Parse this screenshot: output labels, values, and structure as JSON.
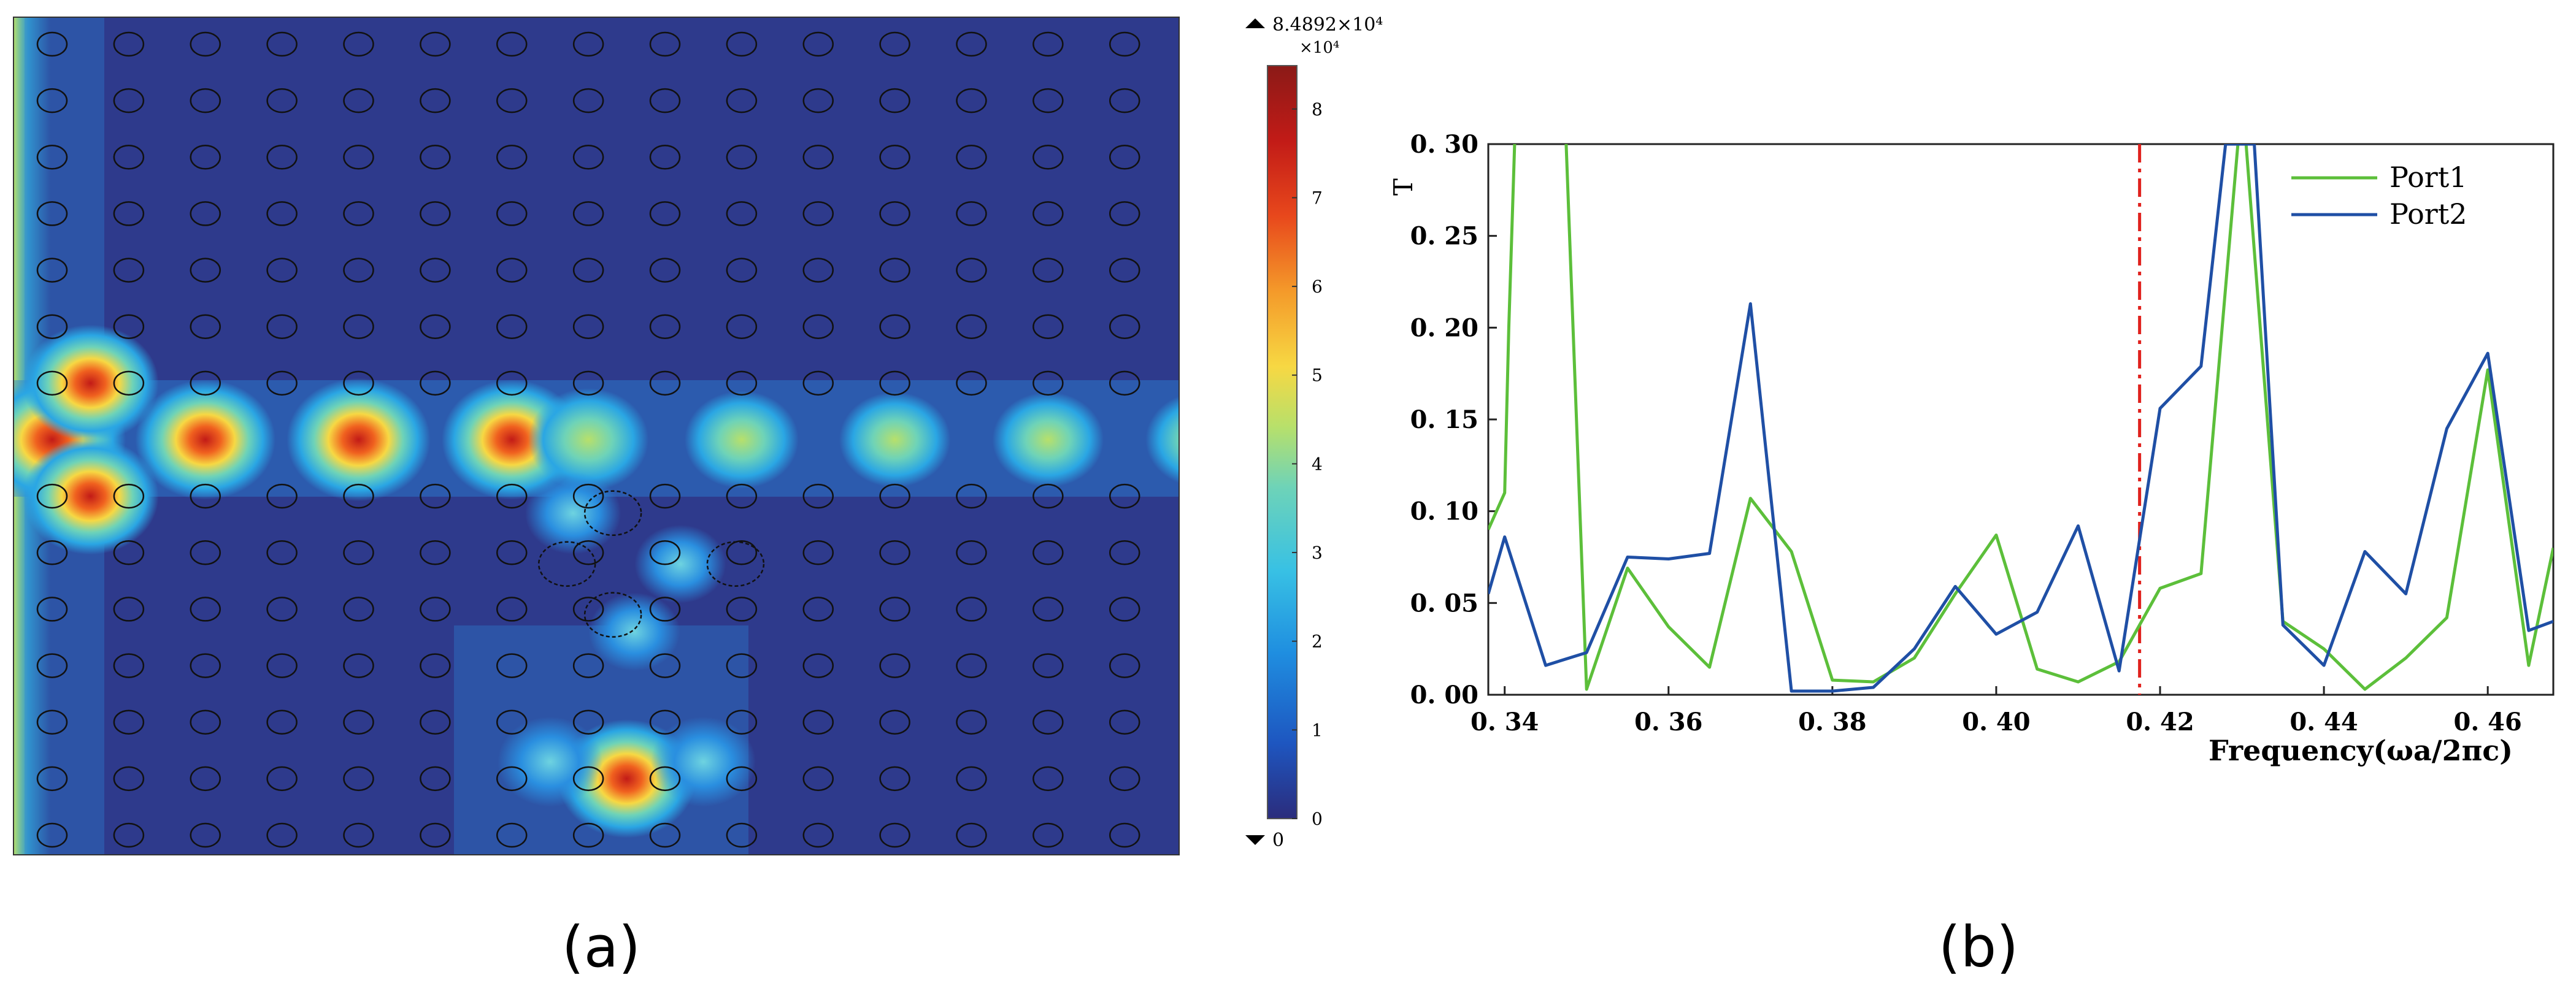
{
  "panel_a": {
    "label": "(a)",
    "colorbar": {
      "max_label": "8.4892×10⁴",
      "multiplier": "×10⁴",
      "min_label": "0",
      "ticks": [
        "0",
        "1",
        "2",
        "3",
        "4",
        "5",
        "6",
        "7",
        "8"
      ],
      "colors": [
        "#2b2c7c",
        "#1e56c0",
        "#1f8ee0",
        "#38c1e4",
        "#6ed3b8",
        "#b7e06b",
        "#f7d843",
        "#f49a2a",
        "#e8481c",
        "#c21b17",
        "#8b1a17"
      ]
    },
    "field": {
      "rods_columns": 15,
      "rods_rows": 15,
      "hotspots": [
        {
          "col": 0,
          "row": 7,
          "intensity": 0.92
        },
        {
          "col": 2,
          "row": 7,
          "intensity": 0.84
        },
        {
          "col": 4,
          "row": 7,
          "intensity": 0.88
        },
        {
          "col": 6,
          "row": 7,
          "intensity": 0.84
        },
        {
          "col": 7,
          "row": 7,
          "intensity": 0.62
        },
        {
          "col": 9,
          "row": 7,
          "intensity": 0.55
        },
        {
          "col": 11,
          "row": 7,
          "intensity": 0.52
        },
        {
          "col": 13,
          "row": 7,
          "intensity": 0.52
        },
        {
          "col": 15,
          "row": 7,
          "intensity": 0.52
        },
        {
          "col": 0.5,
          "row": 6,
          "intensity": 0.8
        },
        {
          "col": 0.5,
          "row": 8,
          "intensity": 0.8
        },
        {
          "col": 7.5,
          "row": 13,
          "intensity": 0.82
        },
        {
          "col": 6.5,
          "row": 12.7,
          "intensity": 0.45
        },
        {
          "col": 8.5,
          "row": 12.7,
          "intensity": 0.45
        },
        {
          "col": 6.8,
          "row": 8.3,
          "intensity": 0.35
        },
        {
          "col": 8.2,
          "row": 9.2,
          "intensity": 0.3
        },
        {
          "col": 7.6,
          "row": 10.4,
          "intensity": 0.3
        }
      ]
    }
  },
  "panel_b": {
    "label": "(b)",
    "chart_data": {
      "type": "line",
      "title": "",
      "xlabel": "Frequency(ωa/2πc)",
      "ylabel": "T",
      "xlim": [
        0.338,
        0.468
      ],
      "ylim": [
        0.0,
        0.3
      ],
      "xticks": [
        0.34,
        0.36,
        0.38,
        0.4,
        0.42,
        0.44,
        0.46
      ],
      "xtick_labels": [
        "0. 34",
        "0. 36",
        "0. 38",
        "0. 40",
        "0. 42",
        "0. 44",
        "0. 46"
      ],
      "yticks": [
        0.0,
        0.05,
        0.1,
        0.15,
        0.2,
        0.25,
        0.3
      ],
      "ytick_labels": [
        "0. 00",
        "0. 05",
        "0. 10",
        "0. 15",
        "0. 20",
        "0. 25",
        "0. 30"
      ],
      "legend_position": "top-right",
      "vline": {
        "x": 0.4175,
        "color": "#e0211d"
      },
      "series": [
        {
          "name": "Port1",
          "color": "#5cbf3a",
          "x": [
            0.338,
            0.34,
            0.3405,
            0.3415,
            0.347,
            0.3475,
            0.35,
            0.355,
            0.36,
            0.365,
            0.37,
            0.375,
            0.38,
            0.385,
            0.39,
            0.395,
            0.4,
            0.405,
            0.41,
            0.415,
            0.42,
            0.425,
            0.4295,
            0.4305,
            0.435,
            0.44,
            0.445,
            0.45,
            0.455,
            0.46,
            0.465,
            0.468
          ],
          "y": [
            0.09,
            0.11,
            0.2,
            0.34,
            0.34,
            0.3,
            0.003,
            0.069,
            0.037,
            0.015,
            0.107,
            0.078,
            0.008,
            0.007,
            0.02,
            0.055,
            0.087,
            0.014,
            0.007,
            0.018,
            0.058,
            0.066,
            0.3,
            0.3,
            0.04,
            0.025,
            0.003,
            0.02,
            0.042,
            0.177,
            0.016,
            0.08
          ]
        },
        {
          "name": "Port2",
          "color": "#1f4fa5",
          "x": [
            0.338,
            0.34,
            0.345,
            0.35,
            0.355,
            0.36,
            0.365,
            0.37,
            0.375,
            0.38,
            0.385,
            0.39,
            0.395,
            0.4,
            0.405,
            0.41,
            0.415,
            0.42,
            0.425,
            0.428,
            0.4315,
            0.435,
            0.44,
            0.445,
            0.45,
            0.455,
            0.46,
            0.465,
            0.468
          ],
          "y": [
            0.055,
            0.086,
            0.016,
            0.023,
            0.075,
            0.074,
            0.077,
            0.213,
            0.002,
            0.002,
            0.004,
            0.025,
            0.059,
            0.033,
            0.045,
            0.092,
            0.013,
            0.156,
            0.179,
            0.3,
            0.3,
            0.038,
            0.016,
            0.078,
            0.055,
            0.145,
            0.186,
            0.035,
            0.04
          ]
        }
      ]
    }
  }
}
